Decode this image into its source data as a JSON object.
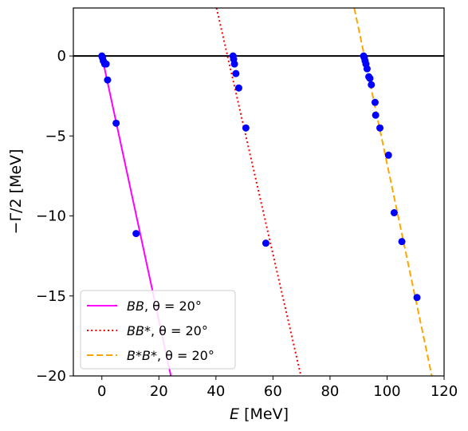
{
  "chart_data": {
    "type": "scatter",
    "xlabel_var": "E",
    "xlabel_unit": " [MeV]",
    "ylabel": "−Γ/2 [MeV]",
    "xlim": [
      -10,
      120
    ],
    "ylim": [
      -20,
      3
    ],
    "xticks": [
      0,
      20,
      40,
      60,
      80,
      100,
      120
    ],
    "xtick_labels": [
      "0",
      "20",
      "40",
      "60",
      "80",
      "100",
      "120"
    ],
    "yticks": [
      0,
      -5,
      -10,
      -15,
      -20
    ],
    "ytick_labels": [
      "0",
      "−5",
      "−10",
      "−15",
      "−20"
    ],
    "grid": false,
    "legend_position": "lower-left",
    "reference_line": {
      "y": 0,
      "color": "#000000"
    },
    "lines": [
      {
        "name_var": "BB",
        "name_rest": ", θ = 20°",
        "color": "#ff00ff",
        "style": "solid",
        "x": [
          0,
          24.2
        ],
        "y": [
          0,
          -20
        ]
      },
      {
        "name_var": "BB*",
        "name_rest": ", θ = 20°",
        "color": "#ff0000",
        "style": "dotted",
        "x": [
          40.2,
          69.8
        ],
        "y": [
          3,
          -20
        ]
      },
      {
        "name_var": "B*B*",
        "name_rest": ", θ = 20°",
        "color": "#ffa500",
        "style": "dashed",
        "x": [
          88.5,
          115.7
        ],
        "y": [
          3,
          -20
        ]
      }
    ],
    "points": {
      "color": "#0000ff",
      "x": [
        0,
        0.2,
        0.5,
        1.0,
        1.5,
        2.0,
        5.0,
        12.0,
        46.0,
        46.2,
        46.5,
        47.0,
        48.0,
        50.5,
        57.5,
        91.8,
        92.0,
        92.3,
        92.6,
        93.0,
        93.6,
        94.0,
        94.5,
        95.8,
        96.0,
        97.5,
        100.5,
        102.5,
        105.2,
        110.5
      ],
      "y": [
        0,
        -0.1,
        -0.3,
        -0.5,
        -0.5,
        -1.5,
        -4.2,
        -11.1,
        0,
        -0.2,
        -0.5,
        -1.1,
        -2.0,
        -4.5,
        -11.7,
        0,
        -0.1,
        -0.3,
        -0.5,
        -0.8,
        -1.3,
        -1.4,
        -1.8,
        -2.9,
        -3.7,
        -4.5,
        -6.2,
        -9.8,
        -11.6,
        -15.1
      ]
    }
  }
}
